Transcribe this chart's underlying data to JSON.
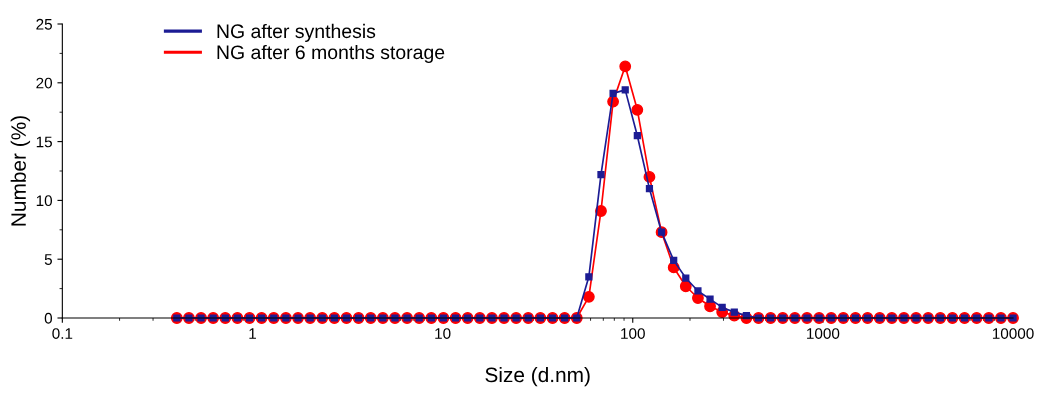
{
  "chart_data": {
    "type": "line",
    "xlabel": "Size (d.nm)",
    "ylabel": "Number (%)",
    "log": "x",
    "xlim": [
      0.1,
      10000
    ],
    "xticks": [
      0.1,
      1,
      10,
      100,
      1000,
      10000
    ],
    "ylim": [
      0,
      25
    ],
    "yticks": [
      0,
      5,
      10,
      15,
      20,
      25
    ],
    "grid": false,
    "legend": "top left",
    "x": [
      0.4,
      0.4632,
      0.5365,
      0.6213,
      0.7195,
      0.8332,
      0.965,
      1.117,
      1.294,
      1.499,
      1.736,
      2.01,
      2.328,
      2.696,
      3.122,
      3.615,
      4.187,
      4.849,
      5.615,
      6.503,
      7.531,
      8.721,
      10.1,
      11.7,
      13.54,
      15.69,
      18.17,
      21.04,
      24.36,
      28.21,
      32.67,
      37.84,
      43.82,
      50.75,
      58.77,
      68.06,
      78.82,
      91.28,
      105.7,
      122.4,
      141.8,
      164.2,
      190.1,
      220.2,
      255.0,
      295.3,
      342.0,
      396.1,
      458.7,
      531.2,
      615.1,
      712.4,
      825.0,
      955.4,
      1106,
      1281,
      1484,
      1718,
      1990,
      2305,
      2669,
      3091,
      3580,
      4145,
      4801,
      5560,
      6439,
      7456,
      8635,
      10000
    ],
    "series": [
      {
        "name": "NG after 6 months storage",
        "color": "#ff0000",
        "marker": "circle",
        "values": [
          0,
          0,
          0,
          0,
          0,
          0,
          0,
          0,
          0,
          0,
          0,
          0,
          0,
          0,
          0,
          0,
          0,
          0,
          0,
          0,
          0,
          0,
          0,
          0,
          0,
          0,
          0,
          0,
          0,
          0,
          0,
          0,
          0,
          0,
          1.8,
          9.1,
          18.4,
          21.4,
          17.7,
          12.0,
          7.3,
          4.3,
          2.7,
          1.7,
          1.0,
          0.5,
          0.2,
          0,
          0,
          0,
          0,
          0,
          0,
          0,
          0,
          0,
          0,
          0,
          0,
          0,
          0,
          0,
          0,
          0,
          0,
          0,
          0,
          0,
          0,
          0
        ]
      },
      {
        "name": "NG after synthesis",
        "color": "#1c1c94",
        "marker": "square",
        "values": [
          0,
          0,
          0,
          0,
          0,
          0,
          0,
          0,
          0,
          0,
          0,
          0,
          0,
          0,
          0,
          0,
          0,
          0,
          0,
          0,
          0,
          0,
          0,
          0,
          0,
          0,
          0,
          0,
          0,
          0,
          0,
          0,
          0,
          0,
          3.5,
          12.2,
          19.1,
          19.4,
          15.5,
          11.0,
          7.3,
          4.9,
          3.4,
          2.3,
          1.6,
          0.9,
          0.5,
          0.2,
          0,
          0,
          0,
          0,
          0,
          0,
          0,
          0,
          0,
          0,
          0,
          0,
          0,
          0,
          0,
          0,
          0,
          0,
          0,
          0,
          0,
          0
        ]
      }
    ]
  }
}
